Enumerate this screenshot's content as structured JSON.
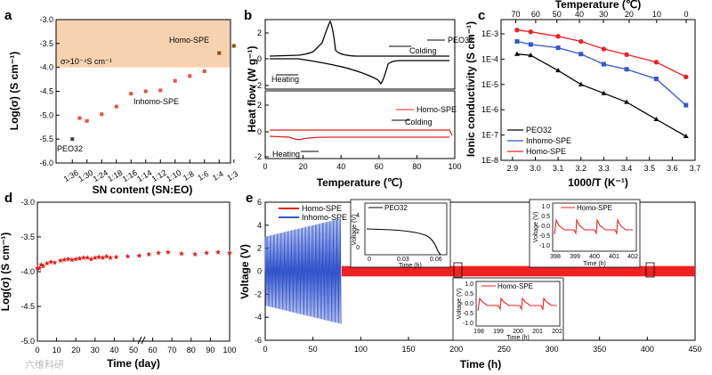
{
  "watermark": "六维科研",
  "chart_data": [
    {
      "panel": "a",
      "type": "scatter",
      "xlabel": "SN content (SN:EO)",
      "ylabel": "Log(σ) (S cm⁻¹)",
      "ylim": [
        -6.0,
        -3.0
      ],
      "yticks": [
        "-3.0",
        "-3.5",
        "-4.0",
        "-4.5",
        "-5.0",
        "-5.5",
        "-6.0"
      ],
      "categories": [
        "1:36",
        "1:30",
        "1:24",
        "1:18",
        "1:16",
        "1:14",
        "1:12",
        "1:10",
        "1:8",
        "1:6",
        "1:4",
        "1:3"
      ],
      "series": [
        {
          "name": "SN:EO",
          "values": [
            -5.5,
            -5.06,
            -5.12,
            -4.98,
            -4.82,
            -4.55,
            -4.5,
            -4.48,
            -4.28,
            -4.18,
            -4.08,
            -3.7,
            -3.55
          ]
        }
      ],
      "x_positions": [
        0,
        0.5,
        1,
        2,
        3,
        4,
        5,
        6,
        7,
        8,
        9,
        10,
        11
      ],
      "threshold_band": {
        "from": -4.0,
        "to": -3.0,
        "label": "σ>10⁻⁴S cm⁻¹"
      },
      "annotations": {
        "homo": "Homo-SPE",
        "inhomo": "Inhomo-SPE",
        "peo": "PEO32"
      }
    },
    {
      "panel": "b",
      "type": "line",
      "xlabel": "Temperature (℃)",
      "ylabel": "Heat flow (W g⁻¹)",
      "xlim": [
        0,
        100
      ],
      "xticks": [
        "0",
        "20",
        "40",
        "60",
        "80",
        "100"
      ],
      "top": {
        "legend": "PEO32",
        "yticks": [
          "2",
          "0",
          "-2"
        ],
        "ylim": [
          -2.2,
          2.4
        ],
        "labels": {
          "heating": "Heating",
          "colding": "Colding"
        }
      },
      "bottom": {
        "legend": "Homo-SPE",
        "yticks": [
          "2",
          "0",
          "-2"
        ],
        "ylim": [
          -2.2,
          2.4
        ],
        "labels": {
          "heating": "Heating",
          "colding": "Colding"
        }
      }
    },
    {
      "panel": "c",
      "type": "line",
      "xlabel": "1000/T (K⁻¹)",
      "ylabel": "Ionic conductivity (S cm⁻¹)",
      "x2label": "Temperature (℃)",
      "xlim": [
        2.85,
        3.7
      ],
      "xticks": [
        "2.9",
        "3.0",
        "3.1",
        "3.2",
        "3.3",
        "3.4",
        "3.5",
        "3.6",
        "3.7"
      ],
      "x2ticks": [
        "70",
        "60",
        "50",
        "40",
        "30",
        "20",
        "10",
        "0"
      ],
      "yticks": [
        "1E-3",
        "1E-4",
        "1E-5",
        "1E-6",
        "1E-7",
        "1E-8"
      ],
      "series": [
        {
          "name": "PEO32",
          "color": "#000000",
          "x": [
            2.92,
            2.98,
            3.1,
            3.2,
            3.3,
            3.4,
            3.53,
            3.66
          ],
          "logy": [
            -3.8,
            -3.85,
            -4.45,
            -5.0,
            -5.35,
            -5.7,
            -6.38,
            -7.05
          ]
        },
        {
          "name": "Inhomo-SPE",
          "color": "#3355cc",
          "x": [
            2.92,
            2.98,
            3.1,
            3.2,
            3.3,
            3.4,
            3.53,
            3.66
          ],
          "logy": [
            -3.3,
            -3.42,
            -3.55,
            -3.8,
            -4.2,
            -4.4,
            -4.78,
            -5.82
          ]
        },
        {
          "name": "Homo-SPE",
          "color": "#ee2222",
          "x": [
            2.92,
            2.98,
            3.1,
            3.2,
            3.3,
            3.4,
            3.53,
            3.66
          ],
          "logy": [
            -2.85,
            -2.92,
            -3.1,
            -3.3,
            -3.6,
            -3.82,
            -4.12,
            -4.7
          ]
        }
      ]
    },
    {
      "panel": "d",
      "type": "scatter",
      "xlabel": "Time (day)",
      "ylabel": "Log(σ) (S cm⁻¹)",
      "ylim": [
        -5.0,
        -3.0
      ],
      "yticks": [
        "-3.0",
        "-3.5",
        "-4.0",
        "-4.5",
        "-5.0"
      ],
      "xticks": [
        "0",
        "10",
        "20",
        "30",
        "40",
        "50",
        "60",
        "70",
        "80",
        "90",
        "100"
      ],
      "series": [
        {
          "name": "Homo-SPE",
          "x": [
            0,
            1,
            2,
            3,
            5,
            7,
            9,
            12,
            14,
            16,
            18,
            20,
            22,
            24,
            26,
            28,
            30,
            32,
            34,
            36,
            38,
            41,
            47,
            53,
            58,
            63,
            68,
            75,
            82,
            88,
            94,
            100
          ],
          "values": [
            -3.95,
            -3.95,
            -3.9,
            -3.92,
            -3.88,
            -3.86,
            -3.87,
            -3.84,
            -3.83,
            -3.82,
            -3.83,
            -3.82,
            -3.81,
            -3.8,
            -3.8,
            -3.82,
            -3.8,
            -3.79,
            -3.8,
            -3.78,
            -3.8,
            -3.79,
            -3.78,
            -3.77,
            -3.75,
            -3.73,
            -3.72,
            -3.74,
            -3.75,
            -3.73,
            -3.72,
            -3.73
          ]
        }
      ]
    },
    {
      "panel": "e",
      "type": "line",
      "xlabel": "Time (h)",
      "ylabel": "Voltage (V)",
      "xlim": [
        0,
        450
      ],
      "ylim": [
        -6,
        6
      ],
      "xticks": [
        "0",
        "50",
        "100",
        "150",
        "200",
        "250",
        "300",
        "350",
        "400",
        "450"
      ],
      "yticks": [
        "6",
        "4",
        "2",
        "0",
        "-2",
        "-4",
        "-6"
      ],
      "legend": [
        {
          "name": "Homo-SPE",
          "color": "#ee2222"
        },
        {
          "name": "Inhomo-SPE",
          "color": "#3355cc"
        }
      ],
      "insets": [
        {
          "name": "PEO32",
          "ylabel": "Voltage (V)",
          "xlabel": "Time (h)",
          "xticks": [
            "0",
            "0.03",
            "0.06"
          ],
          "yticks": [
            "4",
            "2",
            "0"
          ]
        },
        {
          "name": "Homo-SPE",
          "ylabel": "Voltage (V)",
          "xlabel": "Time (h)",
          "xticks": [
            "398",
            "399",
            "400",
            "401",
            "402"
          ],
          "yticks": [
            "1.0",
            "0.5",
            "0.0",
            "-0.5",
            "-1.0"
          ]
        },
        {
          "name": "Homo-SPE",
          "ylabel": "Voltage (V)",
          "xlabel": "Time (h)",
          "xticks": [
            "198",
            "199",
            "200",
            "201",
            "202"
          ],
          "yticks": [
            "1.0",
            "0.5",
            "0.0",
            "-0.5",
            "-1.0"
          ]
        }
      ]
    }
  ]
}
